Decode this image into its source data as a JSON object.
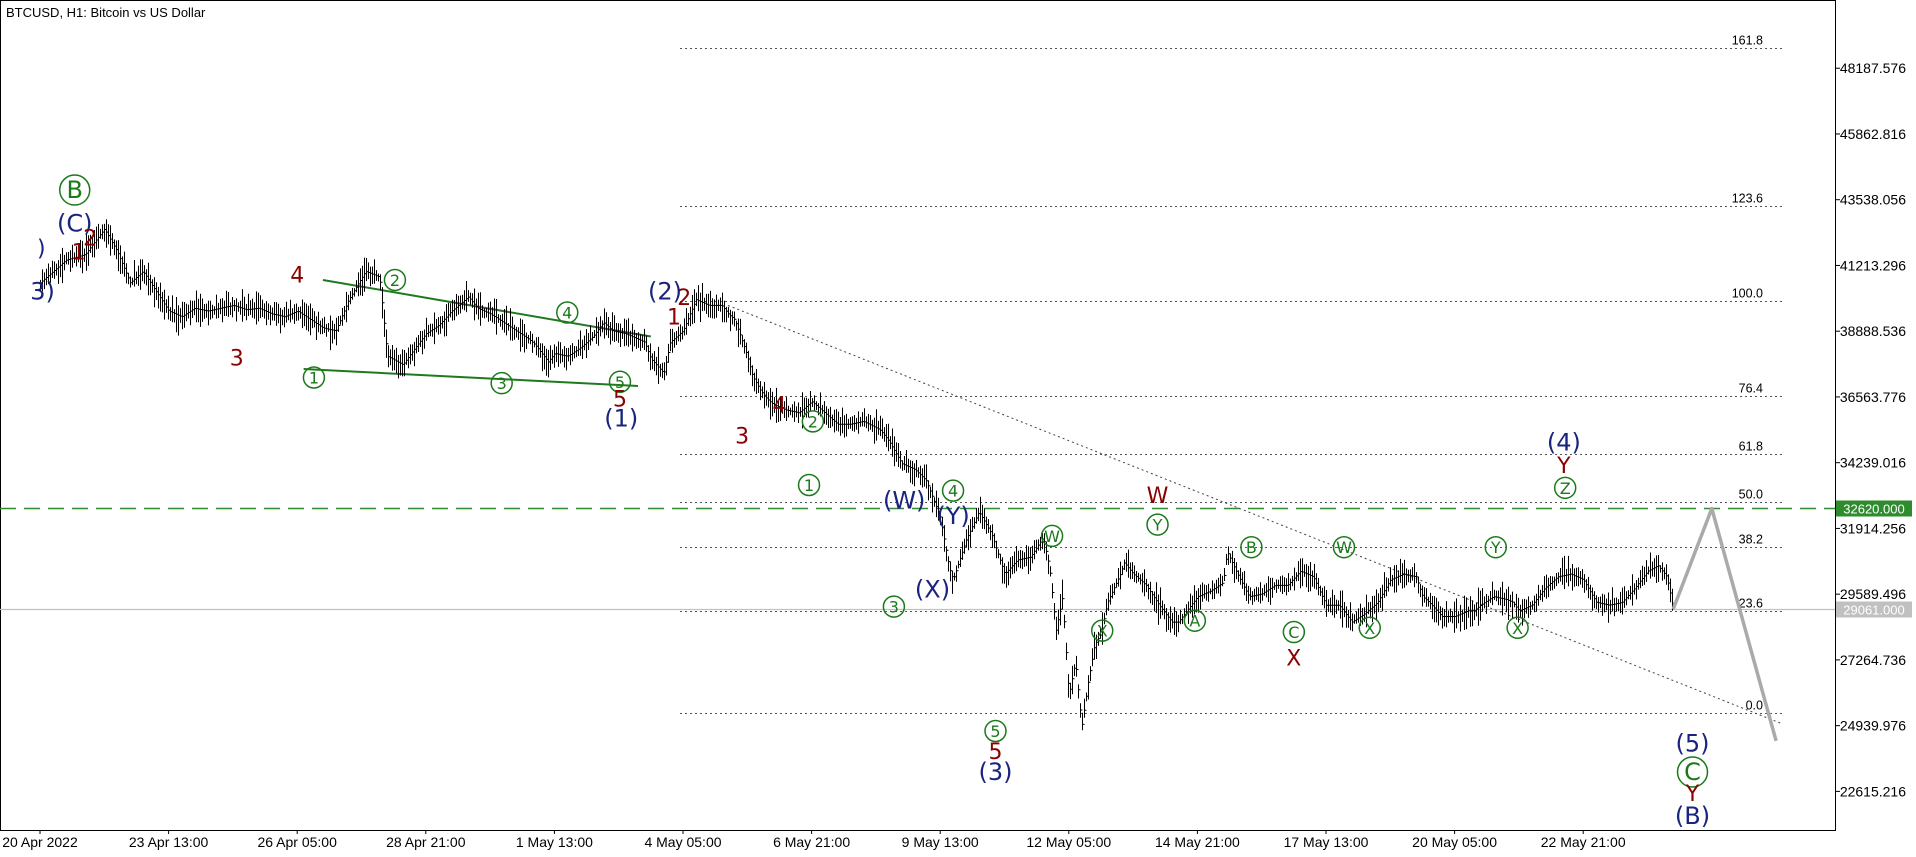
{
  "chart_data": {
    "type": "line",
    "title": "BTCUSD, H1:  Bitcoin vs US Dollar",
    "ylim": [
      21250,
      50600
    ],
    "x_tick_labels": [
      "20 Apr 2022",
      "23 Apr 13:00",
      "26 Apr 05:00",
      "28 Apr 21:00",
      "1 May 13:00",
      "4 May 05:00",
      "6 May 21:00",
      "9 May 13:00",
      "12 May 05:00",
      "14 May 21:00",
      "17 May 13:00",
      "20 May 05:00",
      "22 May 21:00"
    ],
    "y_tick_values": [
      48187.576,
      45862.816,
      43538.056,
      41213.296,
      38888.536,
      36563.776,
      34239.016,
      31914.256,
      29589.496,
      27264.736,
      24939.976,
      22615.216
    ],
    "y_tick_labels": [
      "48187.576",
      "45862.816",
      "43538.056",
      "41213.296",
      "38888.536",
      "36563.776",
      "34239.016",
      "31914.256",
      "29589.496",
      "27264.736",
      "24939.976",
      "22615.216"
    ],
    "price_line": [
      [
        0,
        40600
      ],
      [
        2,
        41400
      ],
      [
        3.5,
        41600
      ],
      [
        5,
        42500
      ],
      [
        6,
        41700
      ],
      [
        7,
        40600
      ],
      [
        8,
        41000
      ],
      [
        9,
        40300
      ],
      [
        10,
        39600
      ],
      [
        11,
        39400
      ],
      [
        12,
        39700
      ],
      [
        13,
        39600
      ],
      [
        14,
        39700
      ],
      [
        15,
        39800
      ],
      [
        16,
        39650
      ],
      [
        17,
        39700
      ],
      [
        18,
        39500
      ],
      [
        19,
        39400
      ],
      [
        20,
        39600
      ],
      [
        21,
        39300
      ],
      [
        22,
        39000
      ],
      [
        23,
        38900
      ],
      [
        24,
        40000
      ],
      [
        25.3,
        41000
      ],
      [
        26.4,
        40800
      ],
      [
        27,
        38000
      ],
      [
        28.2,
        37700
      ],
      [
        29,
        38200
      ],
      [
        30,
        38800
      ],
      [
        31,
        39100
      ],
      [
        32,
        39600
      ],
      [
        33.3,
        40100
      ],
      [
        34,
        39700
      ],
      [
        35,
        39500
      ],
      [
        36,
        39200
      ],
      [
        37,
        38900
      ],
      [
        38,
        38600
      ],
      [
        38.5,
        38400
      ],
      [
        39.5,
        37800
      ],
      [
        40,
        38100
      ],
      [
        41,
        38000
      ],
      [
        42,
        38300
      ],
      [
        43,
        38700
      ],
      [
        43.8,
        39200
      ],
      [
        44.5,
        38900
      ],
      [
        45.5,
        38800
      ],
      [
        46,
        38700
      ],
      [
        47,
        38500
      ],
      [
        47.5,
        37900
      ],
      [
        48.5,
        37400
      ],
      [
        49,
        38500
      ],
      [
        50,
        38900
      ],
      [
        51,
        40000
      ],
      [
        52,
        39800
      ],
      [
        53,
        39800
      ],
      [
        53.5,
        39500
      ],
      [
        54,
        39300
      ],
      [
        54.4,
        38800
      ],
      [
        55,
        38000
      ],
      [
        55.4,
        37300
      ],
      [
        56,
        36800
      ],
      [
        56.5,
        36500
      ],
      [
        57,
        36300
      ],
      [
        58,
        36100
      ],
      [
        59,
        36000
      ],
      [
        60,
        36400
      ],
      [
        61.5,
        35800
      ],
      [
        62,
        35600
      ],
      [
        63,
        35600
      ],
      [
        64,
        35700
      ],
      [
        65.3,
        35400
      ],
      [
        66,
        35000
      ],
      [
        67,
        34200
      ],
      [
        68,
        34000
      ],
      [
        68.9,
        33600
      ],
      [
        70,
        32300
      ],
      [
        70.7,
        30500
      ],
      [
        71,
        30100
      ],
      [
        72,
        31500
      ],
      [
        73,
        32500
      ],
      [
        74,
        31700
      ],
      [
        75,
        30300
      ],
      [
        76,
        30800
      ],
      [
        77,
        30900
      ],
      [
        78,
        31600
      ],
      [
        78.5,
        30500
      ],
      [
        79,
        28300
      ],
      [
        79.5,
        29500
      ],
      [
        80,
        26000
      ],
      [
        80.5,
        27200
      ],
      [
        81,
        24900
      ],
      [
        81.5,
        26500
      ],
      [
        82,
        27800
      ],
      [
        82.5,
        28200
      ],
      [
        83,
        29300
      ],
      [
        84,
        30300
      ],
      [
        84.3,
        30700
      ],
      [
        85,
        30300
      ],
      [
        86,
        29900
      ],
      [
        87,
        29200
      ],
      [
        88,
        28600
      ],
      [
        88.5,
        28600
      ],
      [
        89,
        28900
      ],
      [
        90,
        29500
      ],
      [
        91,
        29700
      ],
      [
        92,
        30000
      ],
      [
        92.3,
        31100
      ],
      [
        93,
        30400
      ],
      [
        94,
        29500
      ],
      [
        95,
        29600
      ],
      [
        96,
        29900
      ],
      [
        97,
        29900
      ],
      [
        98,
        30400
      ],
      [
        99,
        30200
      ],
      [
        100,
        29200
      ],
      [
        101,
        29200
      ],
      [
        102,
        28600
      ],
      [
        103,
        28900
      ],
      [
        104,
        29300
      ],
      [
        105,
        30100
      ],
      [
        106,
        30300
      ],
      [
        107,
        30200
      ],
      [
        107.5,
        29500
      ],
      [
        108,
        29300
      ],
      [
        109,
        28800
      ],
      [
        110,
        28800
      ],
      [
        111,
        29000
      ],
      [
        111.5,
        29000
      ],
      [
        112,
        29200
      ],
      [
        113,
        29500
      ],
      [
        114,
        29400
      ],
      [
        114.5,
        29300
      ],
      [
        115,
        29000
      ],
      [
        116,
        29200
      ],
      [
        117,
        29800
      ],
      [
        118,
        30200
      ],
      [
        119,
        30300
      ],
      [
        120,
        30100
      ],
      [
        121,
        29300
      ],
      [
        122,
        29200
      ],
      [
        123,
        29300
      ],
      [
        124,
        29800
      ],
      [
        125,
        30400
      ],
      [
        125.8,
        30600
      ],
      [
        126.5,
        30200
      ],
      [
        127,
        29061
      ]
    ],
    "x_line": [
      [
        50,
        30300
      ],
      [
        68.2,
        30000
      ],
      [
        87.5,
        29400
      ],
      [
        104.5,
        30150
      ],
      [
        127.2,
        29061
      ]
    ],
    "x_dots": [
      [
        67.5,
        29700
      ],
      [
        88,
        29700
      ],
      [
        96,
        29700
      ],
      [
        106,
        29700
      ]
    ],
    "trend_line": [
      [
        53.5,
        39800
      ],
      [
        135.5,
        25000
      ]
    ],
    "projection": [
      [
        127,
        29061
      ],
      [
        130,
        32620
      ],
      [
        135,
        24400
      ]
    ],
    "channel_upper": [
      [
        22,
        40700
      ],
      [
        47.5,
        38700
      ]
    ],
    "channel_lower": [
      [
        20.5,
        37550
      ],
      [
        46.5,
        36950
      ]
    ],
    "fib_levels": [
      {
        "label": "161.8",
        "value": 48900
      },
      {
        "label": "123.6",
        "value": 43300
      },
      {
        "label": "100.0",
        "value": 39950
      },
      {
        "label": "76.4",
        "value": 36600
      },
      {
        "label": "61.8",
        "value": 34550
      },
      {
        "label": "50.0",
        "value": 32850
      },
      {
        "label": "38.2",
        "value": 31250
      },
      {
        "label": "23.6",
        "value": 29000
      },
      {
        "label": "0.0",
        "value": 25400
      }
    ],
    "horizontal_lines": [
      {
        "label": "32620.000",
        "value": 32620,
        "color": "#2e8b2e",
        "style": "dashed"
      },
      {
        "label": "29061.000",
        "value": 29061,
        "color": "#c0c0c0",
        "style": "solid"
      }
    ],
    "wave_labels": [
      {
        "text": "B",
        "color": "#1a7a1a",
        "circle": true,
        "x": 2.7,
        "y": 43880
      },
      {
        "text": "(C)",
        "color": "#1a237e",
        "circle": false,
        "x": 2.7,
        "y": 42700
      },
      {
        "text": "2",
        "color": "#8b0000",
        "circle": false,
        "x": 3.9,
        "y": 42200
      },
      {
        "text": "1",
        "color": "#8b0000",
        "circle": false,
        "x": 3.0,
        "y": 41700
      },
      {
        "text": ")",
        "color": "#1a237e",
        "circle": false,
        "x": 0.1,
        "y": 41850
      },
      {
        "text": "3)",
        "color": "#1a237e",
        "circle": false,
        "x": 0.2,
        "y": 40300
      },
      {
        "text": "4",
        "color": "#8b0000",
        "circle": false,
        "x": 20.0,
        "y": 40900
      },
      {
        "text": "3",
        "color": "#8b0000",
        "circle": false,
        "x": 15.3,
        "y": 37950
      },
      {
        "text": "1",
        "color": "#1a7a1a",
        "circle": true,
        "x": 21.3,
        "y": 37250
      },
      {
        "text": "2",
        "color": "#1a7a1a",
        "circle": true,
        "x": 27.6,
        "y": 40700
      },
      {
        "text": "3",
        "color": "#1a7a1a",
        "circle": true,
        "x": 35.9,
        "y": 37050
      },
      {
        "text": "4",
        "color": "#1a7a1a",
        "circle": true,
        "x": 41.0,
        "y": 39550
      },
      {
        "text": "5",
        "color": "#1a7a1a",
        "circle": true,
        "x": 45.1,
        "y": 37100
      },
      {
        "text": "5",
        "color": "#8b0000",
        "circle": false,
        "x": 45.1,
        "y": 36500
      },
      {
        "text": "(1)",
        "color": "#1a237e",
        "circle": false,
        "x": 45.2,
        "y": 35800
      },
      {
        "text": "(2)",
        "color": "#1a237e",
        "circle": false,
        "x": 48.6,
        "y": 40300
      },
      {
        "text": "2",
        "color": "#8b0000",
        "circle": false,
        "x": 50.1,
        "y": 40100
      },
      {
        "text": "1",
        "color": "#8b0000",
        "circle": false,
        "x": 49.3,
        "y": 39400
      },
      {
        "text": "4",
        "color": "#8b0000",
        "circle": false,
        "x": 57.5,
        "y": 36300
      },
      {
        "text": "3",
        "color": "#8b0000",
        "circle": false,
        "x": 54.6,
        "y": 35200
      },
      {
        "text": "2",
        "color": "#1a7a1a",
        "circle": true,
        "x": 60.1,
        "y": 35700
      },
      {
        "text": "1",
        "color": "#1a7a1a",
        "circle": true,
        "x": 59.8,
        "y": 33450
      },
      {
        "text": "(W)",
        "color": "#1a237e",
        "circle": false,
        "x": 67.2,
        "y": 32900
      },
      {
        "text": "4",
        "color": "#1a7a1a",
        "circle": true,
        "x": 71.0,
        "y": 33250
      },
      {
        "text": "(Y)",
        "color": "#1a237e",
        "circle": false,
        "x": 71.0,
        "y": 32350
      },
      {
        "text": "3",
        "color": "#1a7a1a",
        "circle": true,
        "x": 66.4,
        "y": 29150
      },
      {
        "text": "(X)",
        "color": "#1a237e",
        "circle": false,
        "x": 69.4,
        "y": 29750
      },
      {
        "text": "W",
        "color": "#1a7a1a",
        "circle": true,
        "x": 78.7,
        "y": 31650
      },
      {
        "text": "5",
        "color": "#1a7a1a",
        "circle": true,
        "x": 74.3,
        "y": 24750
      },
      {
        "text": "5",
        "color": "#8b0000",
        "circle": false,
        "x": 74.3,
        "y": 24050
      },
      {
        "text": "(3)",
        "color": "#1a237e",
        "circle": false,
        "x": 74.3,
        "y": 23300
      },
      {
        "text": "X",
        "color": "#1a7a1a",
        "circle": true,
        "x": 82.6,
        "y": 28300
      },
      {
        "text": "W",
        "color": "#8b0000",
        "circle": false,
        "x": 86.9,
        "y": 33100
      },
      {
        "text": "Y",
        "color": "#1a7a1a",
        "circle": true,
        "x": 86.9,
        "y": 32050
      },
      {
        "text": "A",
        "color": "#1a7a1a",
        "circle": true,
        "x": 89.8,
        "y": 28650
      },
      {
        "text": "B",
        "color": "#1a7a1a",
        "circle": true,
        "x": 94.2,
        "y": 31250
      },
      {
        "text": "C",
        "color": "#1a7a1a",
        "circle": true,
        "x": 97.5,
        "y": 28250
      },
      {
        "text": "X",
        "color": "#8b0000",
        "circle": false,
        "x": 97.5,
        "y": 27350
      },
      {
        "text": "W",
        "color": "#1a7a1a",
        "circle": true,
        "x": 101.4,
        "y": 31250
      },
      {
        "text": "X",
        "color": "#1a7a1a",
        "circle": true,
        "x": 103.4,
        "y": 28400
      },
      {
        "text": "Y",
        "color": "#1a7a1a",
        "circle": true,
        "x": 113.2,
        "y": 31250
      },
      {
        "text": "X",
        "color": "#1a7a1a",
        "circle": true,
        "x": 114.9,
        "y": 28400
      },
      {
        "text": "(4)",
        "color": "#1a237e",
        "circle": false,
        "x": 118.5,
        "y": 34950
      },
      {
        "text": "Y",
        "color": "#8b0000",
        "circle": false,
        "x": 118.5,
        "y": 34150
      },
      {
        "text": "Z",
        "color": "#1a7a1a",
        "circle": true,
        "x": 118.6,
        "y": 33350
      },
      {
        "text": "(5)",
        "color": "#1a237e",
        "circle": false,
        "x": 128.5,
        "y": 24300
      },
      {
        "text": "C",
        "color": "#1a7a1a",
        "circle": true,
        "x": 128.5,
        "y": 23300
      },
      {
        "text": "Y",
        "color": "#8b0000",
        "circle": false,
        "x": 128.5,
        "y": 22550
      },
      {
        "text": "(B)",
        "color": "#1a237e",
        "circle": false,
        "x": 128.5,
        "y": 21750
      }
    ]
  }
}
